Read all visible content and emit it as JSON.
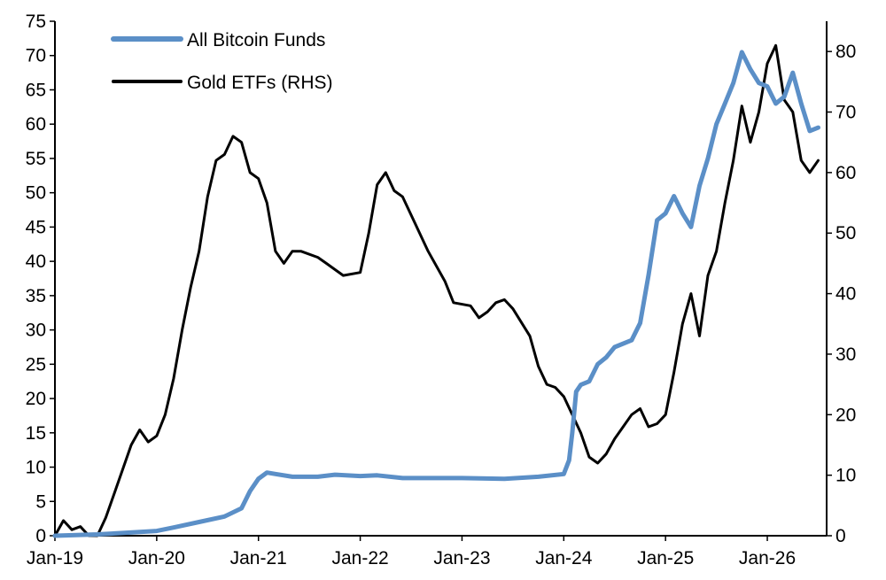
{
  "chart_data": {
    "type": "line",
    "title": "",
    "xlabel": "",
    "ylabel": "",
    "x_tick_labels": [
      "Jan-19",
      "Jan-20",
      "Jan-21",
      "Jan-22",
      "Jan-23",
      "Jan-24",
      "Jan-25",
      "Jan-26"
    ],
    "ylim_left": [
      0,
      75
    ],
    "yticks_left": [
      0,
      5,
      10,
      15,
      20,
      25,
      30,
      35,
      40,
      45,
      50,
      55,
      60,
      65,
      70,
      75
    ],
    "ylim_right": [
      0,
      85
    ],
    "yticks_right": [
      0,
      10,
      20,
      30,
      40,
      50,
      60,
      70,
      80
    ],
    "grid": false,
    "legend_position": "top-left",
    "series": [
      {
        "name": "All Bitcoin Funds",
        "axis": "left",
        "color": "#5B8FC7",
        "points": [
          [
            "2019-01",
            0
          ],
          [
            "2019-06",
            0.2
          ],
          [
            "2019-09",
            0.4
          ],
          [
            "2020-01",
            0.7
          ],
          [
            "2020-03",
            1.2
          ],
          [
            "2020-06",
            2.0
          ],
          [
            "2020-09",
            2.8
          ],
          [
            "2020-11",
            4.0
          ],
          [
            "2020-12",
            6.5
          ],
          [
            "2021-01",
            8.3
          ],
          [
            "2021-02",
            9.2
          ],
          [
            "2021-03",
            9.0
          ],
          [
            "2021-05",
            8.6
          ],
          [
            "2021-08",
            8.6
          ],
          [
            "2021-10",
            8.9
          ],
          [
            "2022-01",
            8.7
          ],
          [
            "2022-03",
            8.8
          ],
          [
            "2022-06",
            8.4
          ],
          [
            "2023-01",
            8.4
          ],
          [
            "2023-06",
            8.3
          ],
          [
            "2023-10",
            8.6
          ],
          [
            "2024-01",
            9.0
          ],
          [
            "2024-01-20",
            11
          ],
          [
            "2024-02",
            15
          ],
          [
            "2024-02-15",
            21
          ],
          [
            "2024-03",
            22
          ],
          [
            "2024-04",
            22.5
          ],
          [
            "2024-05",
            25
          ],
          [
            "2024-06",
            26
          ],
          [
            "2024-07",
            27.5
          ],
          [
            "2024-09",
            28.5
          ],
          [
            "2024-10",
            31
          ],
          [
            "2024-11",
            38
          ],
          [
            "2024-12",
            46
          ],
          [
            "2025-01",
            47
          ],
          [
            "2025-02",
            49.5
          ],
          [
            "2025-03",
            47
          ],
          [
            "2025-04",
            45
          ],
          [
            "2025-05",
            51
          ],
          [
            "2025-06",
            55
          ],
          [
            "2025-07",
            60
          ],
          [
            "2025-08",
            63
          ],
          [
            "2025-09",
            66
          ],
          [
            "2025-10",
            70.5
          ],
          [
            "2025-11",
            68
          ],
          [
            "2025-12",
            66
          ],
          [
            "2026-01",
            65.5
          ],
          [
            "2026-02",
            63
          ],
          [
            "2026-03",
            64
          ],
          [
            "2026-04",
            67.5
          ],
          [
            "2026-05",
            63
          ],
          [
            "2026-06",
            59
          ],
          [
            "2026-07",
            59.5
          ]
        ]
      },
      {
        "name": "Gold ETFs (RHS)",
        "axis": "right",
        "color": "#000000",
        "points": [
          [
            "2019-01",
            0
          ],
          [
            "2019-02",
            2.5
          ],
          [
            "2019-03",
            1.0
          ],
          [
            "2019-04",
            1.5
          ],
          [
            "2019-05",
            0
          ],
          [
            "2019-06",
            0
          ],
          [
            "2019-07",
            3
          ],
          [
            "2019-08",
            7
          ],
          [
            "2019-09",
            11
          ],
          [
            "2019-10",
            15
          ],
          [
            "2019-11",
            17.5
          ],
          [
            "2019-12",
            15.5
          ],
          [
            "2020-01",
            16.5
          ],
          [
            "2020-02",
            20
          ],
          [
            "2020-03",
            26
          ],
          [
            "2020-04",
            34
          ],
          [
            "2020-05",
            41
          ],
          [
            "2020-06",
            47
          ],
          [
            "2020-07",
            56
          ],
          [
            "2020-08",
            62
          ],
          [
            "2020-09",
            63
          ],
          [
            "2020-10",
            66
          ],
          [
            "2020-11",
            65
          ],
          [
            "2020-12",
            60
          ],
          [
            "2021-01",
            59
          ],
          [
            "2021-02",
            55
          ],
          [
            "2021-03",
            47
          ],
          [
            "2021-04",
            45
          ],
          [
            "2021-05",
            47
          ],
          [
            "2021-06",
            47
          ],
          [
            "2021-08",
            46
          ],
          [
            "2021-09",
            45
          ],
          [
            "2021-11",
            43
          ],
          [
            "2022-01",
            43.5
          ],
          [
            "2022-02",
            50
          ],
          [
            "2022-03",
            58
          ],
          [
            "2022-04",
            60
          ],
          [
            "2022-05",
            57
          ],
          [
            "2022-06",
            56
          ],
          [
            "2022-08",
            50
          ],
          [
            "2022-09",
            47
          ],
          [
            "2022-11",
            42
          ],
          [
            "2022-12",
            38.5
          ],
          [
            "2023-02",
            38
          ],
          [
            "2023-03",
            36
          ],
          [
            "2023-04",
            37
          ],
          [
            "2023-05",
            38.5
          ],
          [
            "2023-06",
            39
          ],
          [
            "2023-07",
            37.5
          ],
          [
            "2023-09",
            33
          ],
          [
            "2023-10",
            28
          ],
          [
            "2023-11",
            25
          ],
          [
            "2023-12",
            24.5
          ],
          [
            "2024-01",
            23
          ],
          [
            "2024-02",
            20
          ],
          [
            "2024-03",
            17
          ],
          [
            "2024-04",
            13
          ],
          [
            "2024-05",
            12
          ],
          [
            "2024-06",
            13.5
          ],
          [
            "2024-07",
            16
          ],
          [
            "2024-08",
            18
          ],
          [
            "2024-09",
            20
          ],
          [
            "2024-10",
            21
          ],
          [
            "2024-11",
            18
          ],
          [
            "2024-12",
            18.5
          ],
          [
            "2025-01",
            20
          ],
          [
            "2025-02",
            27
          ],
          [
            "2025-03",
            35
          ],
          [
            "2025-04",
            40
          ],
          [
            "2025-05",
            33
          ],
          [
            "2025-06",
            43
          ],
          [
            "2025-07",
            47
          ],
          [
            "2025-08",
            55
          ],
          [
            "2025-09",
            62
          ],
          [
            "2025-10",
            71
          ],
          [
            "2025-11",
            65
          ],
          [
            "2025-12",
            70
          ],
          [
            "2026-01",
            78
          ],
          [
            "2026-02",
            81
          ],
          [
            "2026-03",
            72
          ],
          [
            "2026-04",
            70
          ],
          [
            "2026-05",
            62
          ],
          [
            "2026-06",
            60
          ],
          [
            "2026-07",
            62
          ]
        ]
      }
    ]
  }
}
